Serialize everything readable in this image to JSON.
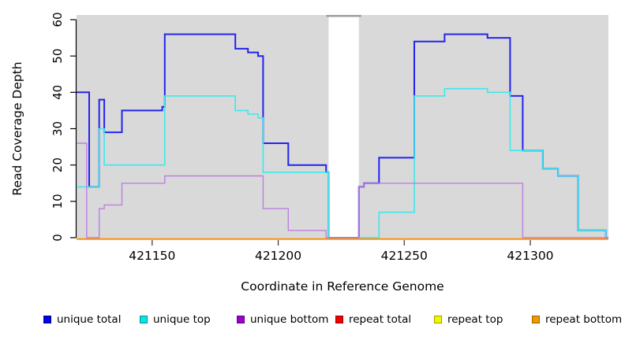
{
  "figure": {
    "xlabel": "Coordinate in Reference Genome",
    "ylabel": "Read Coverage Depth"
  },
  "legend": {
    "items": [
      {
        "label": "unique total",
        "color": "#0000EE"
      },
      {
        "label": "unique top",
        "color": "#00E5E5"
      },
      {
        "label": "unique bottom",
        "color": "#9900CC"
      },
      {
        "label": "repeat total",
        "color": "#EE0000"
      },
      {
        "label": "repeat top",
        "color": "#F5F500"
      },
      {
        "label": "repeat bottom",
        "color": "#EE9900"
      }
    ]
  },
  "chart_data": {
    "type": "line",
    "step": true,
    "title": "",
    "xlabel": "Coordinate in Reference Genome",
    "ylabel": "Read Coverage Depth",
    "xlim": [
      421120,
      421331
    ],
    "ylim": [
      0,
      60
    ],
    "x_ticks": [
      421150,
      421200,
      421250,
      421300
    ],
    "y_ticks": [
      0,
      10,
      20,
      30,
      40,
      50,
      60
    ],
    "grid": false,
    "legend_position": "bottom",
    "panel_color": "#d9d9d9",
    "gap_cap_color": "#9e9e9e",
    "panels": [
      [
        421120,
        421220
      ],
      [
        421232,
        421331
      ]
    ],
    "gap": [
      421220,
      421232
    ],
    "series": [
      {
        "name": "unique total",
        "color": "#2323EE",
        "width": 2,
        "points": [
          [
            421120,
            40
          ],
          [
            421125,
            14
          ],
          [
            421129,
            38
          ],
          [
            421131,
            29
          ],
          [
            421138,
            35
          ],
          [
            421154,
            36
          ],
          [
            421155,
            56
          ],
          [
            421183,
            52
          ],
          [
            421188,
            51
          ],
          [
            421192,
            50
          ],
          [
            421194,
            26
          ],
          [
            421204,
            20
          ],
          [
            421219,
            18
          ],
          [
            421220,
            0
          ],
          [
            421232,
            14
          ],
          [
            421234,
            15
          ],
          [
            421240,
            22
          ],
          [
            421254,
            54
          ],
          [
            421266,
            56
          ],
          [
            421283,
            55
          ],
          [
            421292,
            39
          ],
          [
            421297,
            24
          ],
          [
            421305,
            19
          ],
          [
            421311,
            17
          ],
          [
            421319,
            2
          ],
          [
            421330,
            0
          ],
          [
            421331,
            0
          ]
        ]
      },
      {
        "name": "unique top",
        "color": "#3EE8EC",
        "width": 1.6,
        "points": [
          [
            421120,
            14
          ],
          [
            421129,
            30
          ],
          [
            421131,
            20
          ],
          [
            421155,
            39
          ],
          [
            421183,
            35
          ],
          [
            421188,
            34
          ],
          [
            421192,
            33
          ],
          [
            421194,
            18
          ],
          [
            421220,
            0
          ],
          [
            421240,
            7
          ],
          [
            421254,
            39
          ],
          [
            421266,
            41
          ],
          [
            421283,
            40
          ],
          [
            421292,
            24
          ],
          [
            421305,
            19
          ],
          [
            421311,
            17
          ],
          [
            421319,
            2
          ],
          [
            421330,
            0
          ],
          [
            421331,
            0
          ]
        ]
      },
      {
        "name": "unique bottom",
        "color": "#BB80E2",
        "width": 1.4,
        "points": [
          [
            421120,
            26
          ],
          [
            421124,
            0
          ],
          [
            421129,
            8
          ],
          [
            421131,
            9
          ],
          [
            421138,
            15
          ],
          [
            421155,
            17
          ],
          [
            421194,
            8
          ],
          [
            421204,
            2
          ],
          [
            421219,
            0
          ],
          [
            421232,
            14
          ],
          [
            421234,
            15
          ],
          [
            421297,
            0
          ],
          [
            421331,
            0
          ]
        ]
      },
      {
        "name": "repeat total",
        "color": "#EE0000",
        "width": 1.4,
        "points": [
          [
            421120,
            0
          ],
          [
            421331,
            0
          ]
        ]
      },
      {
        "name": "repeat top",
        "color": "#F0F000",
        "width": 1.4,
        "points": [
          [
            421120,
            0
          ],
          [
            421331,
            0
          ]
        ]
      },
      {
        "name": "repeat bottom",
        "color": "#FF9100",
        "width": 2,
        "points": [
          [
            421120,
            0
          ],
          [
            421331,
            0
          ]
        ]
      }
    ]
  }
}
